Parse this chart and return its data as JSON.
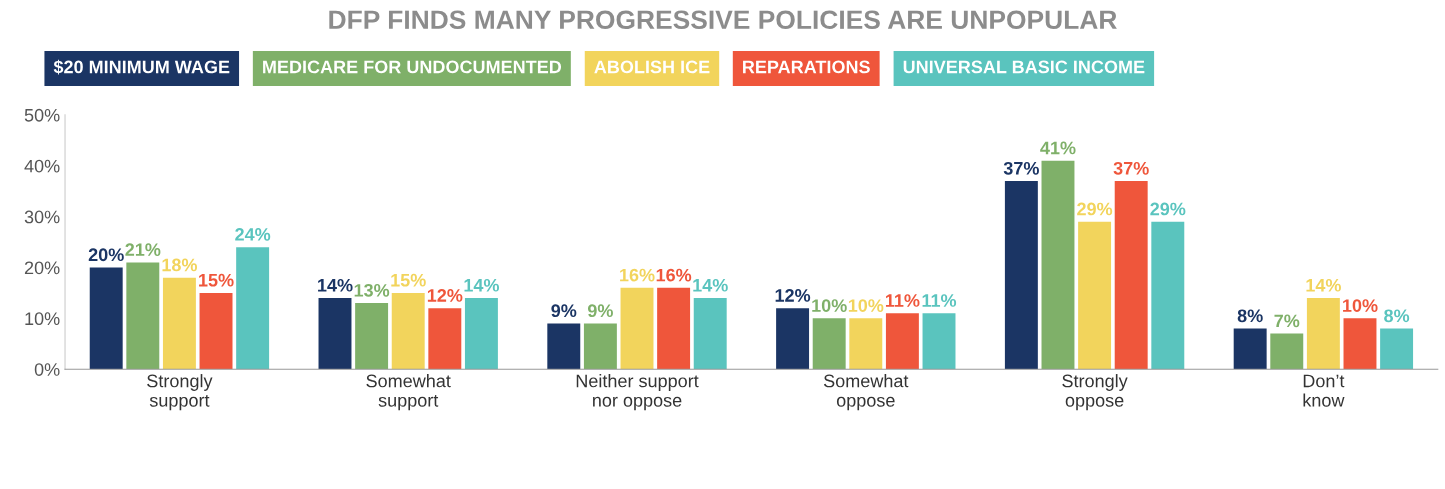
{
  "chart_data": {
    "type": "bar",
    "title": "DFP FINDS MANY PROGRESSIVE POLICIES ARE UNPOPULAR",
    "categories": [
      "Strongly\nsupport",
      "Somewhat\nsupport",
      "Neither support\nnor oppose",
      "Somewhat\noppose",
      "Strongly\noppose",
      "Don’t\nknow"
    ],
    "series": [
      {
        "name": "$20 MINIMUM WAGE",
        "color": "#1b3564",
        "values": [
          20,
          14,
          9,
          12,
          37,
          8
        ],
        "value_labels": [
          "20%",
          "14%",
          "9%",
          "12%",
          "37%",
          "8%"
        ]
      },
      {
        "name": "MEDICARE FOR UNDOCUMENTED",
        "color": "#7fb069",
        "values": [
          21,
          13,
          9,
          10,
          41,
          7
        ],
        "value_labels": [
          "21%",
          "13%",
          "9%",
          "10%",
          "41%",
          "7%"
        ]
      },
      {
        "name": "ABOLISH ICE",
        "color": "#f2d45c",
        "values": [
          18,
          15,
          16,
          10,
          29,
          14
        ],
        "value_labels": [
          "18%",
          "15%",
          "16%",
          "10%",
          "29%",
          "14%"
        ]
      },
      {
        "name": "REPARATIONS",
        "color": "#ef563b",
        "values": [
          15,
          12,
          16,
          11,
          37,
          10
        ],
        "value_labels": [
          "15%",
          "12%",
          "16%",
          "11%",
          "37%",
          "10%"
        ]
      },
      {
        "name": "UNIVERSAL BASIC INCOME",
        "color": "#5ac4be",
        "values": [
          24,
          14,
          14,
          11,
          29,
          8
        ],
        "value_labels": [
          "24%",
          "14%",
          "14%",
          "11%",
          "29%",
          "8%"
        ]
      }
    ],
    "ylim": [
      0,
      50
    ],
    "yticks": [
      {
        "value": 0,
        "label": "0%"
      },
      {
        "value": 10,
        "label": "10%"
      },
      {
        "value": 20,
        "label": "20%"
      },
      {
        "value": 30,
        "label": "30%"
      },
      {
        "value": 40,
        "label": "40%"
      },
      {
        "value": 50,
        "label": "50%"
      }
    ],
    "legend": "top",
    "grid": false
  }
}
